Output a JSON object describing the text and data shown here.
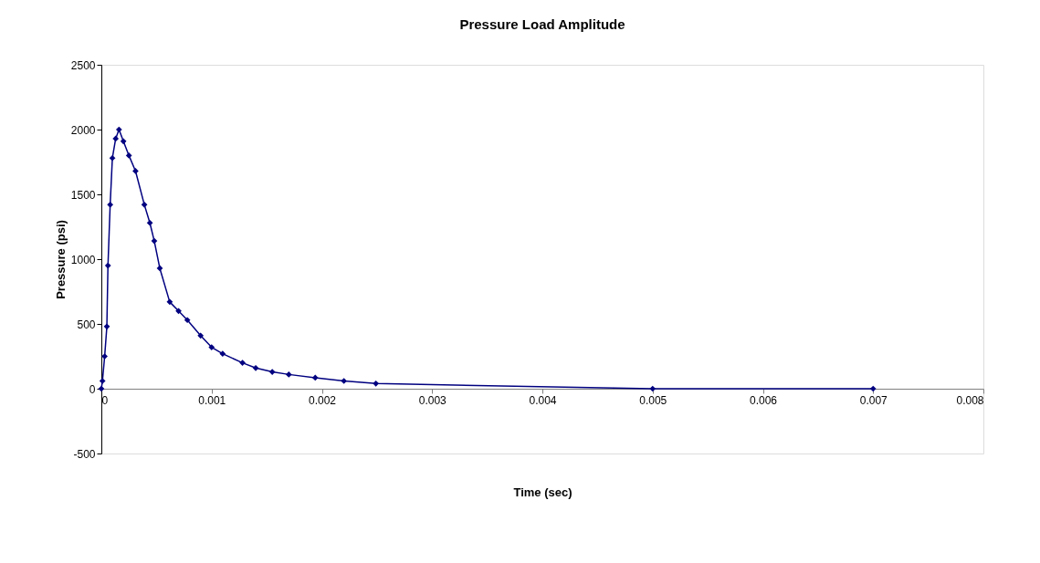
{
  "chart_data": {
    "type": "line",
    "title": "Pressure Load Amplitude",
    "xlabel": "Time (sec)",
    "ylabel": "Pressure (psi)",
    "x": [
      0,
      1e-05,
      3e-05,
      5e-05,
      6e-05,
      8e-05,
      0.0001,
      0.00013,
      0.00016,
      0.0002,
      0.00025,
      0.00031,
      0.00039,
      0.00044,
      0.00048,
      0.00053,
      0.00062,
      0.0007,
      0.00078,
      0.0009,
      0.001,
      0.0011,
      0.00128,
      0.0014,
      0.00155,
      0.0017,
      0.00194,
      0.0022,
      0.00249,
      0.005,
      0.007
    ],
    "series": [
      {
        "color": "#000080",
        "values": [
          0,
          60,
          250,
          480,
          950,
          1420,
          1780,
          1930,
          2000,
          1910,
          1800,
          1680,
          1420,
          1280,
          1140,
          930,
          670,
          600,
          530,
          410,
          320,
          270,
          200,
          160,
          130,
          110,
          85,
          60,
          40,
          0,
          0
        ]
      }
    ],
    "xlim": [
      0,
      0.008
    ],
    "xticks": [
      0,
      0.001,
      0.002,
      0.003,
      0.004,
      0.005,
      0.006,
      0.007,
      0.008
    ],
    "ylim": [
      -500,
      2500
    ],
    "yticks": [
      -500,
      0,
      500,
      1000,
      1500,
      2000,
      2500
    ],
    "grid": false,
    "legend": false,
    "marker": "diamond",
    "line_style": "solid"
  }
}
